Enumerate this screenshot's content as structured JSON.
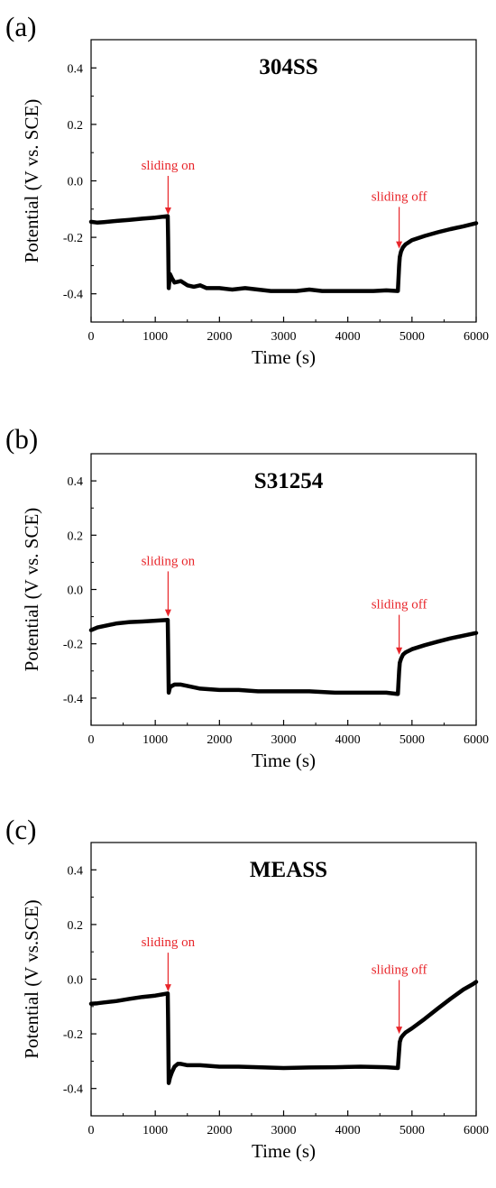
{
  "colors": {
    "axis": "#000000",
    "line": "#000000",
    "annotation": "#e8262b"
  },
  "chart_data": [
    {
      "type": "line",
      "panel_label": "(a)",
      "title": "304SS",
      "xlabel": "Time (s)",
      "ylabel": "Potential (V vs. SCE)",
      "xlim": [
        0,
        6000
      ],
      "ylim": [
        -0.5,
        0.5
      ],
      "xticks": [
        0,
        1000,
        2000,
        3000,
        4000,
        5000,
        6000
      ],
      "yticks": [
        -0.4,
        -0.2,
        0.0,
        0.2,
        0.4
      ],
      "ytick_labels": [
        "-0.4",
        "-0.2",
        "0.0",
        "0.2",
        "0.4"
      ],
      "grid": false,
      "series": [
        {
          "x": [
            0,
            100,
            200,
            400,
            600,
            800,
            1000,
            1195,
            1200,
            1210,
            1230,
            1260,
            1300,
            1400,
            1500,
            1600,
            1700,
            1800,
            2000,
            2200,
            2400,
            2600,
            2800,
            3000,
            3200,
            3400,
            3600,
            3800,
            4000,
            4200,
            4400,
            4600,
            4780,
            4800,
            4810,
            4830,
            4860,
            4900,
            5000,
            5200,
            5400,
            5600,
            5800,
            6000
          ],
          "y": [
            -0.145,
            -0.148,
            -0.146,
            -0.142,
            -0.138,
            -0.134,
            -0.13,
            -0.125,
            -0.2,
            -0.38,
            -0.33,
            -0.345,
            -0.36,
            -0.355,
            -0.37,
            -0.375,
            -0.37,
            -0.38,
            -0.38,
            -0.385,
            -0.38,
            -0.385,
            -0.39,
            -0.39,
            -0.39,
            -0.385,
            -0.39,
            -0.39,
            -0.39,
            -0.39,
            -0.39,
            -0.388,
            -0.39,
            -0.3,
            -0.27,
            -0.25,
            -0.235,
            -0.225,
            -0.21,
            -0.195,
            -0.182,
            -0.171,
            -0.161,
            -0.15
          ]
        }
      ],
      "annotations": [
        {
          "text": "sliding on",
          "x": 1200,
          "y_tip": -0.12,
          "y_text": 0.04
        },
        {
          "text": "sliding off",
          "x": 4800,
          "y_tip": -0.24,
          "y_text": -0.07
        }
      ]
    },
    {
      "type": "line",
      "panel_label": "(b)",
      "title": "S31254",
      "xlabel": "Time (s)",
      "ylabel": "Potential (V vs. SCE)",
      "xlim": [
        0,
        6000
      ],
      "ylim": [
        -0.5,
        0.5
      ],
      "xticks": [
        0,
        1000,
        2000,
        3000,
        4000,
        5000,
        6000
      ],
      "yticks": [
        -0.4,
        -0.2,
        0.0,
        0.2,
        0.4
      ],
      "ytick_labels": [
        "-0.4",
        "-0.2",
        "0.0",
        "0.2",
        "0.4"
      ],
      "grid": false,
      "series": [
        {
          "x": [
            0,
            50,
            100,
            200,
            300,
            400,
            600,
            800,
            1000,
            1195,
            1200,
            1210,
            1230,
            1260,
            1300,
            1400,
            1500,
            1700,
            2000,
            2300,
            2600,
            3000,
            3400,
            3800,
            4200,
            4600,
            4780,
            4800,
            4810,
            4830,
            4860,
            4900,
            5000,
            5200,
            5400,
            5600,
            5800,
            6000
          ],
          "y": [
            -0.15,
            -0.145,
            -0.14,
            -0.135,
            -0.13,
            -0.125,
            -0.12,
            -0.118,
            -0.115,
            -0.112,
            -0.2,
            -0.38,
            -0.36,
            -0.355,
            -0.35,
            -0.35,
            -0.355,
            -0.365,
            -0.37,
            -0.37,
            -0.375,
            -0.375,
            -0.375,
            -0.38,
            -0.38,
            -0.38,
            -0.385,
            -0.3,
            -0.27,
            -0.255,
            -0.24,
            -0.232,
            -0.22,
            -0.205,
            -0.192,
            -0.18,
            -0.17,
            -0.16
          ]
        }
      ],
      "annotations": [
        {
          "text": "sliding on",
          "x": 1200,
          "y_tip": -0.1,
          "y_text": 0.09
        },
        {
          "text": "sliding off",
          "x": 4800,
          "y_tip": -0.24,
          "y_text": -0.07
        }
      ]
    },
    {
      "type": "line",
      "panel_label": "(c)",
      "title": "MEASS",
      "xlabel": "Time (s)",
      "ylabel": "Potential (V vs.SCE)",
      "xlim": [
        0,
        6000
      ],
      "ylim": [
        -0.5,
        0.5
      ],
      "xticks": [
        0,
        1000,
        2000,
        3000,
        4000,
        5000,
        6000
      ],
      "yticks": [
        -0.4,
        -0.2,
        0.0,
        0.2,
        0.4
      ],
      "ytick_labels": [
        "-0.4",
        "-0.2",
        "0.0",
        "0.2",
        "0.4"
      ],
      "grid": false,
      "series": [
        {
          "x": [
            0,
            100,
            200,
            400,
            600,
            800,
            1000,
            1100,
            1195,
            1200,
            1210,
            1230,
            1260,
            1300,
            1350,
            1400,
            1500,
            1700,
            2000,
            2300,
            2600,
            3000,
            3400,
            3800,
            4200,
            4600,
            4780,
            4800,
            4810,
            4830,
            4860,
            4900,
            5000,
            5200,
            5400,
            5600,
            5800,
            5950,
            6000
          ],
          "y": [
            -0.09,
            -0.088,
            -0.085,
            -0.08,
            -0.072,
            -0.065,
            -0.06,
            -0.056,
            -0.052,
            -0.15,
            -0.38,
            -0.36,
            -0.34,
            -0.32,
            -0.31,
            -0.31,
            -0.315,
            -0.315,
            -0.32,
            -0.32,
            -0.322,
            -0.325,
            -0.323,
            -0.322,
            -0.32,
            -0.322,
            -0.325,
            -0.26,
            -0.23,
            -0.215,
            -0.205,
            -0.195,
            -0.18,
            -0.145,
            -0.108,
            -0.072,
            -0.038,
            -0.018,
            -0.01
          ]
        }
      ],
      "annotations": [
        {
          "text": "sliding on",
          "x": 1200,
          "y_tip": -0.045,
          "y_text": 0.12
        },
        {
          "text": "sliding off",
          "x": 4800,
          "y_tip": -0.2,
          "y_text": 0.02
        }
      ]
    }
  ]
}
